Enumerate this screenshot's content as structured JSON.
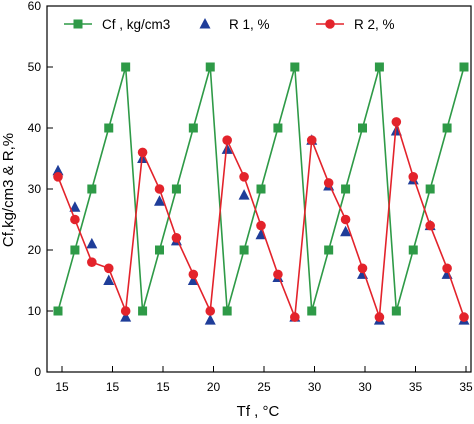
{
  "chart_data": {
    "type": "line",
    "title": "",
    "xlabel": "Tf , °C",
    "ylabel": "Cf,kg/cm3  &  R,%",
    "ylim": [
      0,
      60
    ],
    "y_ticks": [
      "0",
      "10",
      "20",
      "30",
      "40",
      "50",
      "60"
    ],
    "x_tick_labels": [
      "15",
      "15",
      "15",
      "20",
      "25",
      "30",
      "30",
      "35",
      "35"
    ],
    "grid": false,
    "legend_position": "top",
    "series": [
      {
        "name": "Cf , kg/cm3",
        "marker": "square",
        "color": "#2e9a47",
        "line": true,
        "x": [
          0,
          1,
          2,
          3,
          4,
          5,
          6,
          7,
          8,
          9,
          10,
          11,
          12,
          13,
          14,
          15,
          16,
          17,
          18,
          19,
          20,
          21,
          22,
          23,
          24
        ],
        "values": [
          10,
          20,
          30,
          40,
          50,
          10,
          20,
          30,
          40,
          50,
          10,
          20,
          30,
          40,
          50,
          10,
          20,
          30,
          40,
          50,
          10,
          20,
          30,
          40,
          50
        ]
      },
      {
        "name": "R 1, %",
        "marker": "triangle",
        "color": "#1f3d99",
        "line": false,
        "x": [
          0,
          1,
          2,
          3,
          4,
          5,
          6,
          7,
          8,
          9,
          10,
          11,
          12,
          13,
          14,
          15,
          16,
          17,
          18,
          19,
          20,
          21,
          22,
          23,
          24
        ],
        "values": [
          33,
          27,
          21,
          15,
          9,
          35,
          28,
          21.5,
          15,
          8.5,
          36.5,
          29,
          22.5,
          15.5,
          9,
          38,
          30.5,
          23,
          16,
          8.5,
          39.5,
          31.5,
          24,
          16,
          8.5
        ]
      },
      {
        "name": "R 2, %",
        "marker": "circle",
        "color": "#e3232b",
        "line": true,
        "x": [
          0,
          1,
          2,
          3,
          4,
          5,
          6,
          7,
          8,
          9,
          10,
          11,
          12,
          13,
          14,
          15,
          16,
          17,
          18,
          19,
          20,
          21,
          22,
          23,
          24
        ],
        "values": [
          32,
          25,
          18,
          17,
          10,
          36,
          30,
          22,
          16,
          10,
          38,
          32,
          24,
          16,
          9,
          38,
          31,
          25,
          17,
          9,
          41,
          32,
          24,
          17,
          9
        ]
      }
    ]
  }
}
